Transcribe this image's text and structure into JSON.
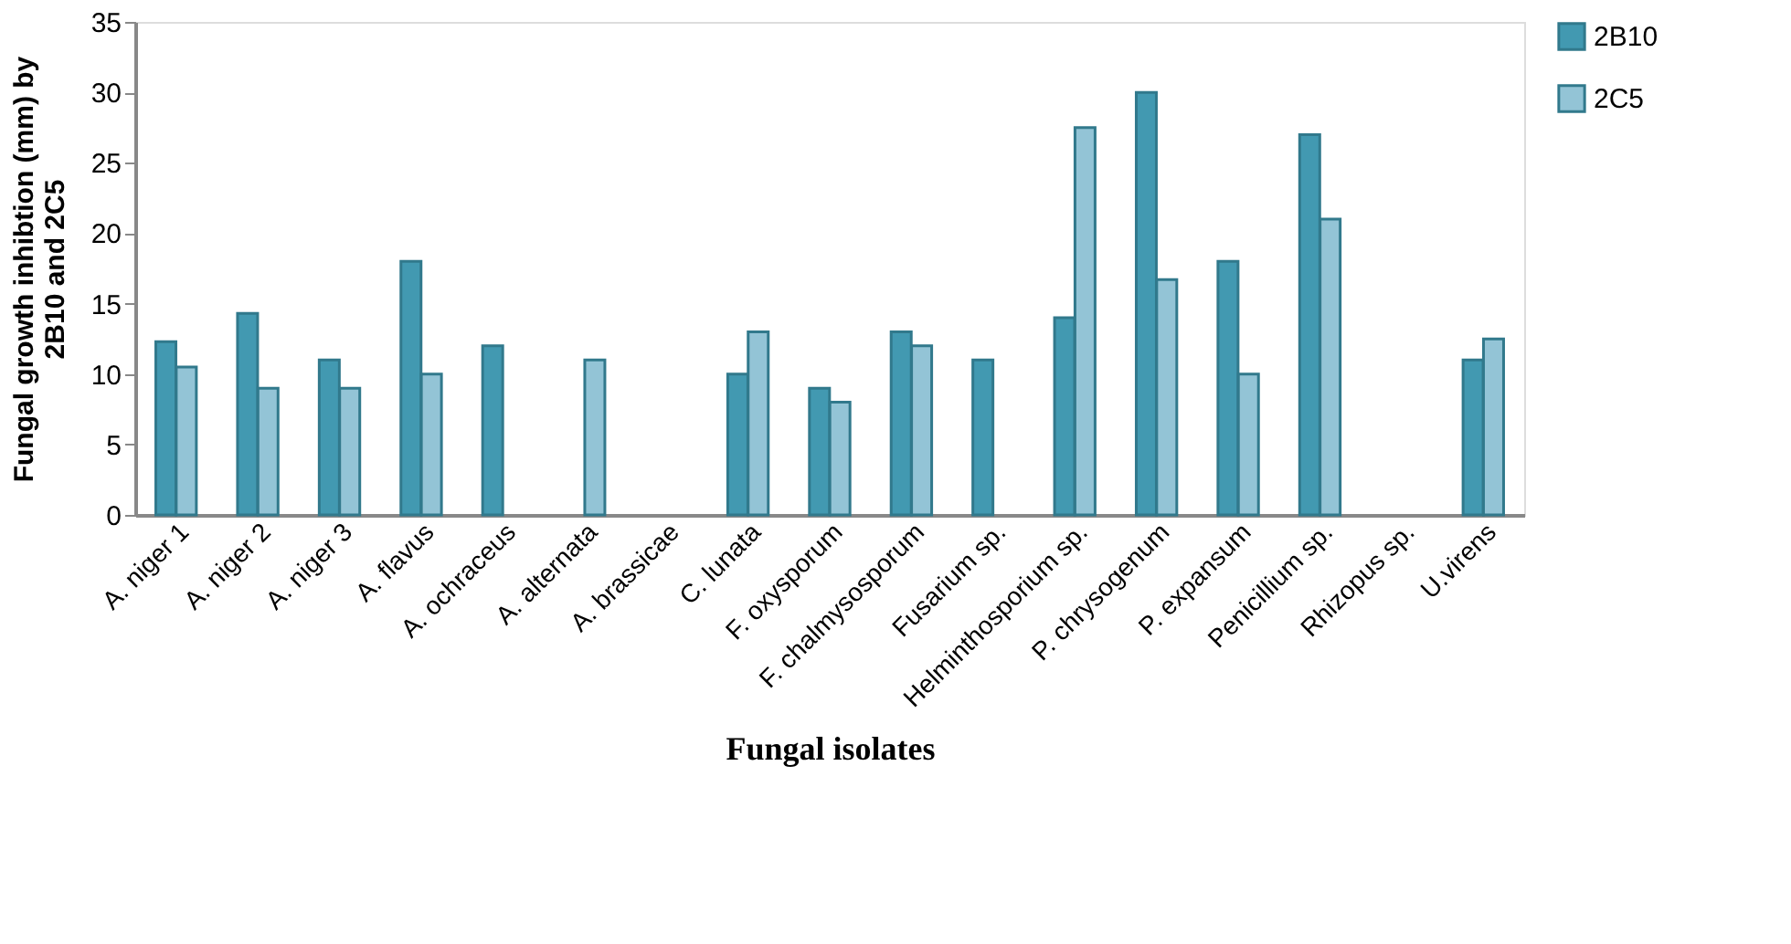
{
  "chart_data": {
    "type": "bar",
    "xlabel": "Fungal isolates",
    "ylabel": "Fungal growth inhibtion (mm) by 2B10 and 2C5",
    "categories": [
      "A. niger 1",
      "A. niger 2",
      "A. niger 3",
      "A. flavus",
      "A. ochraceus",
      "A. alternata",
      "A. brassicae",
      "C. lunata",
      "F. oxysporum",
      "F. chalmysosporum",
      "Fusarium sp.",
      "Helminthosporium sp.",
      "P. chrysogenum",
      "P. expansum",
      "Penicillium sp.",
      "Rhizopus sp.",
      "U.virens"
    ],
    "series": [
      {
        "name": "2B10",
        "color": "#4299b1",
        "values": [
          12.3,
          14.3,
          11,
          18,
          12,
          null,
          null,
          10,
          9,
          13,
          11,
          14,
          30,
          18,
          27,
          null,
          11
        ]
      },
      {
        "name": "2C5",
        "color": "#93c4d6",
        "values": [
          10.5,
          9,
          9,
          10,
          null,
          11,
          null,
          13,
          8,
          12,
          null,
          27.5,
          16.7,
          10,
          21,
          null,
          12.5
        ]
      }
    ],
    "ylim": [
      0,
      35
    ],
    "yticks": [
      0,
      5,
      10,
      15,
      20,
      25,
      30,
      35
    ],
    "grid": false,
    "legend": "right"
  }
}
